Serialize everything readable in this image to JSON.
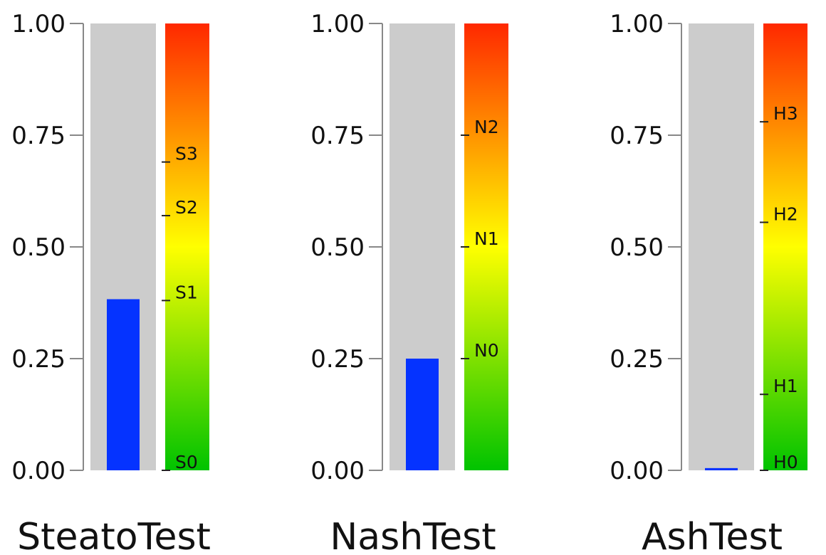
{
  "chart_data": [
    {
      "type": "bar",
      "title": "SteatoTest",
      "value": 0.383,
      "ylim": [
        0,
        1
      ],
      "yticks": [
        "0.00",
        "0.25",
        "0.50",
        "0.75",
        "1.00"
      ],
      "grades": [
        {
          "label": "S0",
          "value": 0.0
        },
        {
          "label": "S1",
          "value": 0.38
        },
        {
          "label": "S2",
          "value": 0.57
        },
        {
          "label": "S3",
          "value": 0.69
        }
      ]
    },
    {
      "type": "bar",
      "title": "NashTest",
      "value": 0.25,
      "ylim": [
        0,
        1
      ],
      "yticks": [
        "0.00",
        "0.25",
        "0.50",
        "0.75",
        "1.00"
      ],
      "grades": [
        {
          "label": "N0",
          "value": 0.25
        },
        {
          "label": "N1",
          "value": 0.5
        },
        {
          "label": "N2",
          "value": 0.75
        }
      ]
    },
    {
      "type": "bar",
      "title": "AshTest",
      "value": 0.005,
      "ylim": [
        0,
        1
      ],
      "yticks": [
        "0.00",
        "0.25",
        "0.50",
        "0.75",
        "1.00"
      ],
      "grades": [
        {
          "label": "H0",
          "value": 0.0
        },
        {
          "label": "H1",
          "value": 0.17
        },
        {
          "label": "H2",
          "value": 0.555
        },
        {
          "label": "H3",
          "value": 0.78
        }
      ]
    }
  ],
  "colors": {
    "bar": "#0533ff",
    "track": "#cccccc",
    "axis": "#888888",
    "gradient": [
      "#00c300",
      "#ffff00",
      "#ff2800"
    ]
  }
}
